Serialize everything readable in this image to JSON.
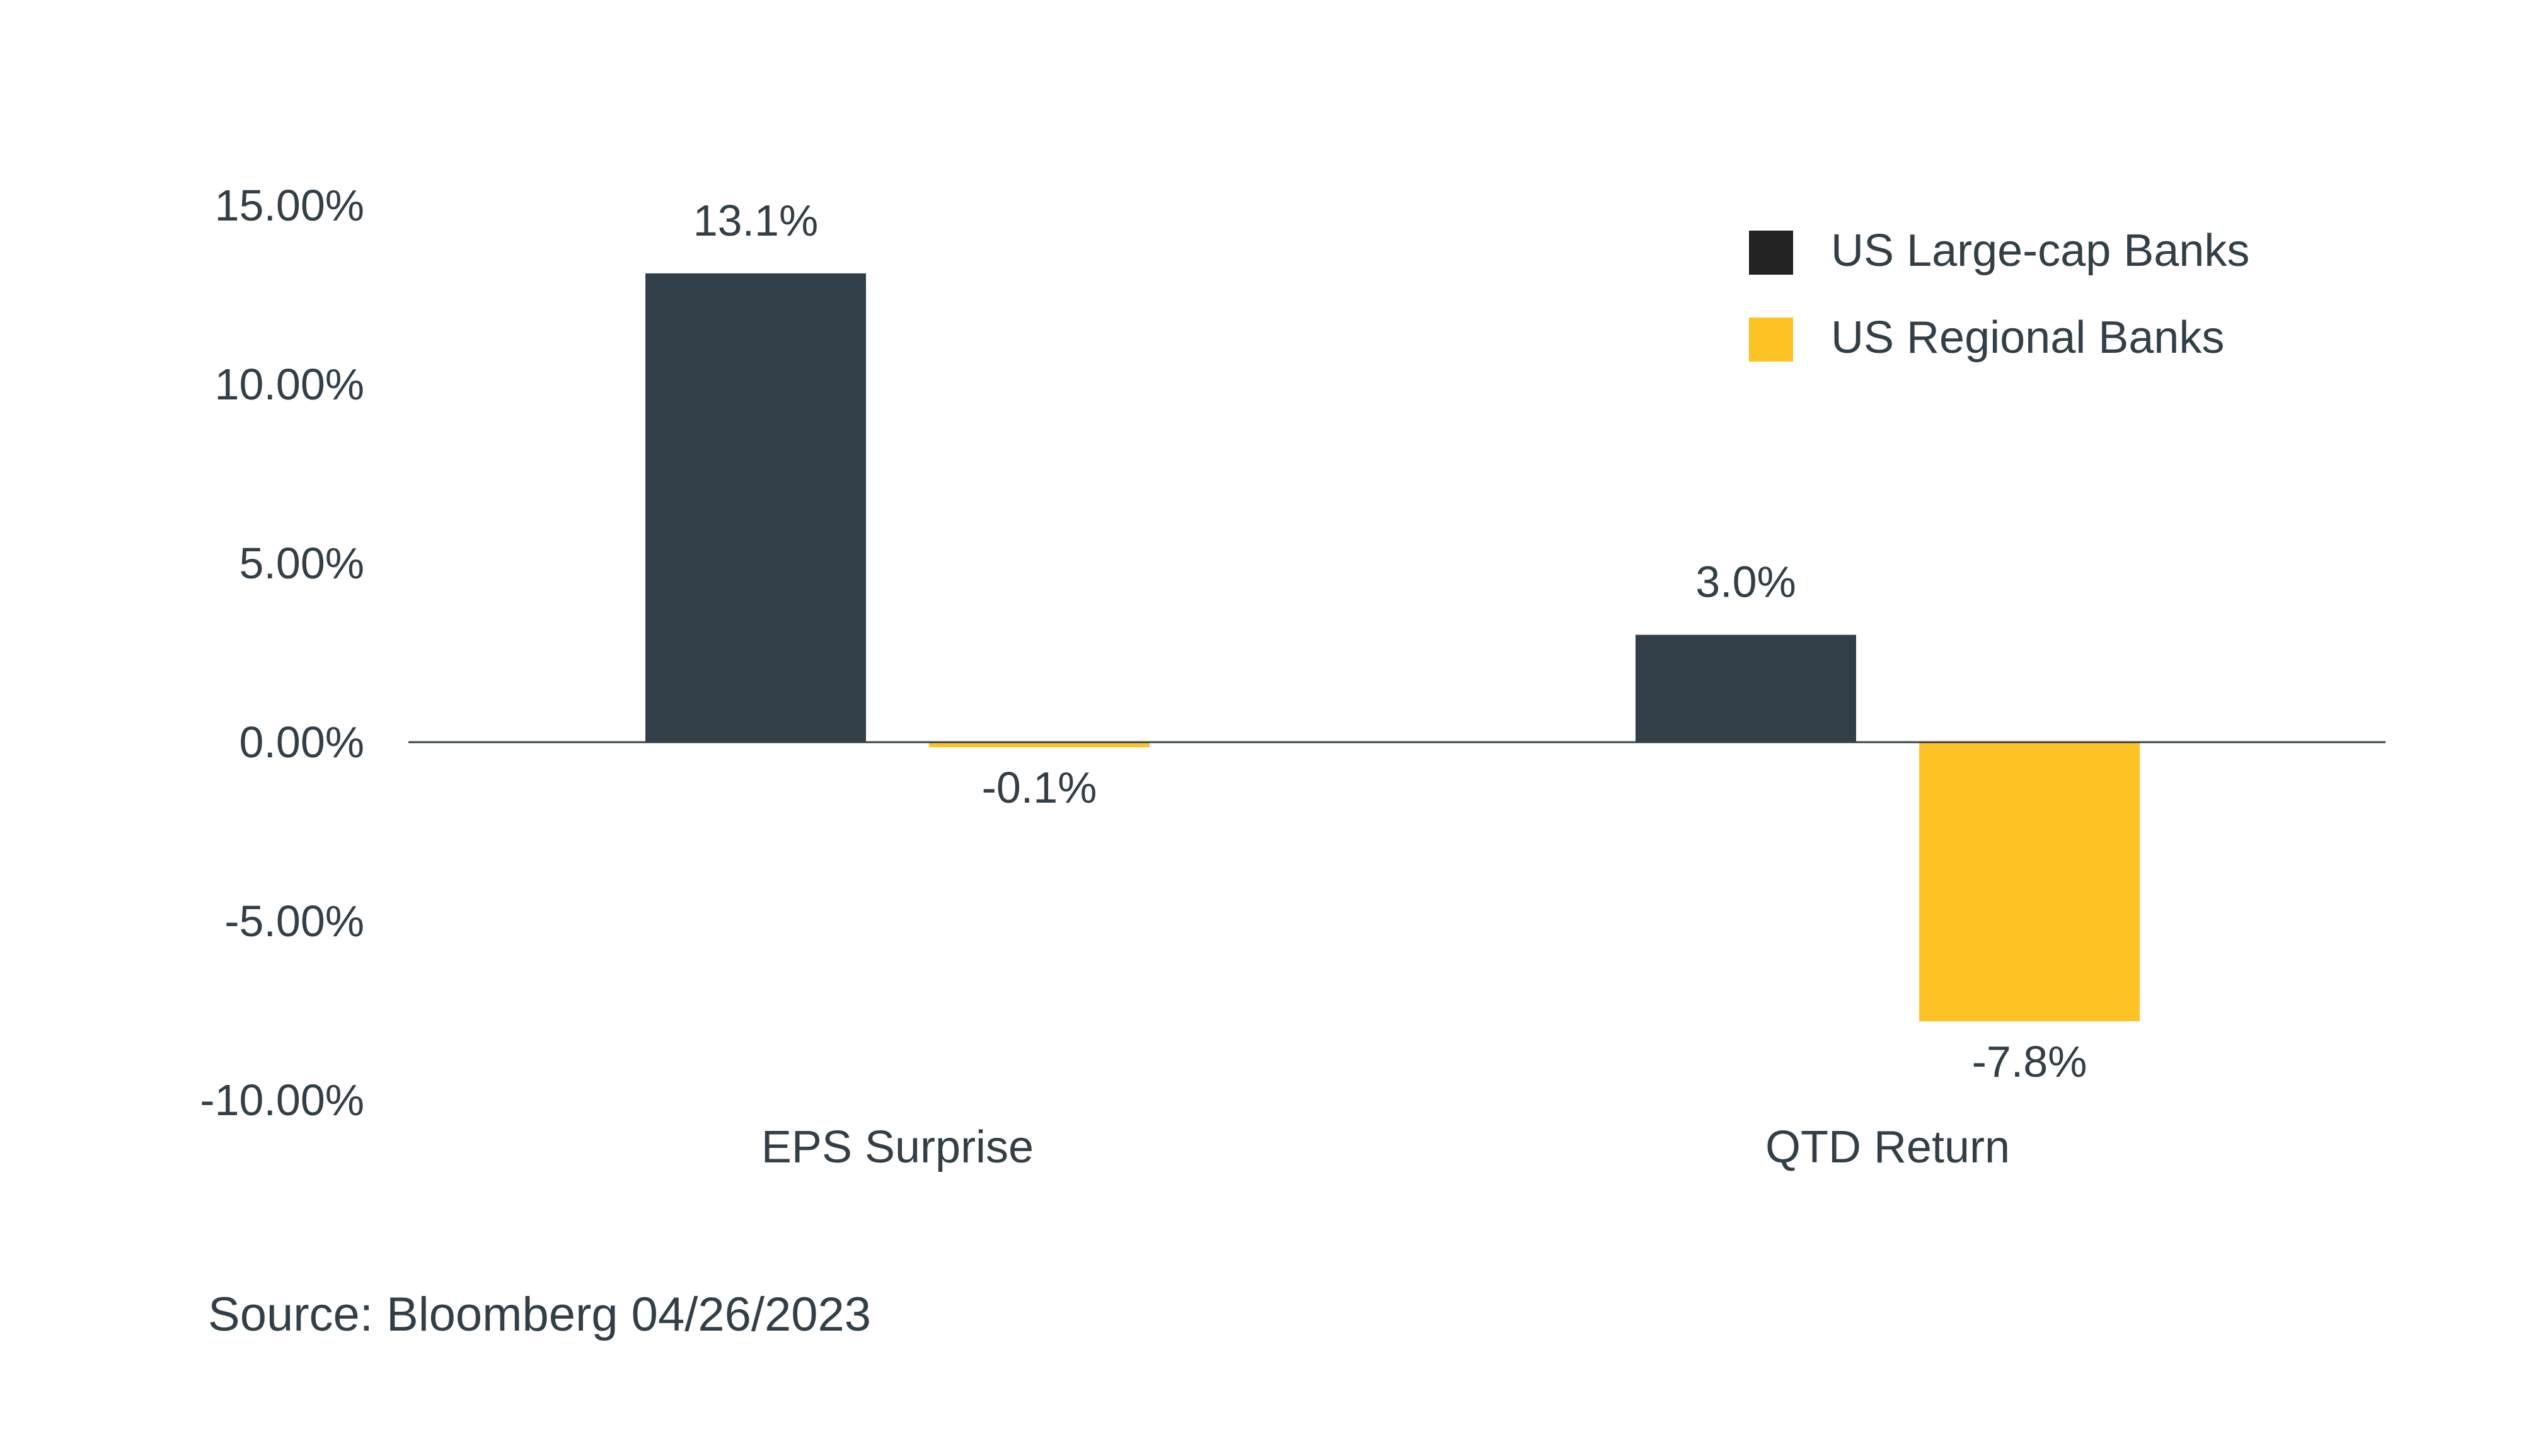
{
  "chart_data": {
    "type": "bar",
    "categories": [
      "EPS Surprise",
      "QTD Return"
    ],
    "series": [
      {
        "name": "US Large-cap Banks",
        "color": "#323f48",
        "values": [
          13.1,
          3.0
        ],
        "labels": [
          "13.1%",
          "3.0%"
        ]
      },
      {
        "name": "US Regional Banks",
        "color": "#fdc325",
        "values": [
          -0.1,
          -7.8
        ],
        "labels": [
          "-0.1%",
          "-7.8%"
        ]
      }
    ],
    "ylim": [
      -10,
      15
    ],
    "yticks": [
      15,
      10,
      5,
      0,
      -5,
      -10
    ],
    "ytick_labels": [
      "15.00%",
      "10.00%",
      "5.00%",
      "0.00%",
      "-5.00%",
      "-10.00%"
    ],
    "legend_position": "top-right",
    "legend_swatch_colors": [
      "#222222",
      "#fdc325"
    ],
    "grid": false,
    "title": "",
    "xlabel": "",
    "ylabel": ""
  },
  "source": "Source: Bloomberg 04/26/2023"
}
